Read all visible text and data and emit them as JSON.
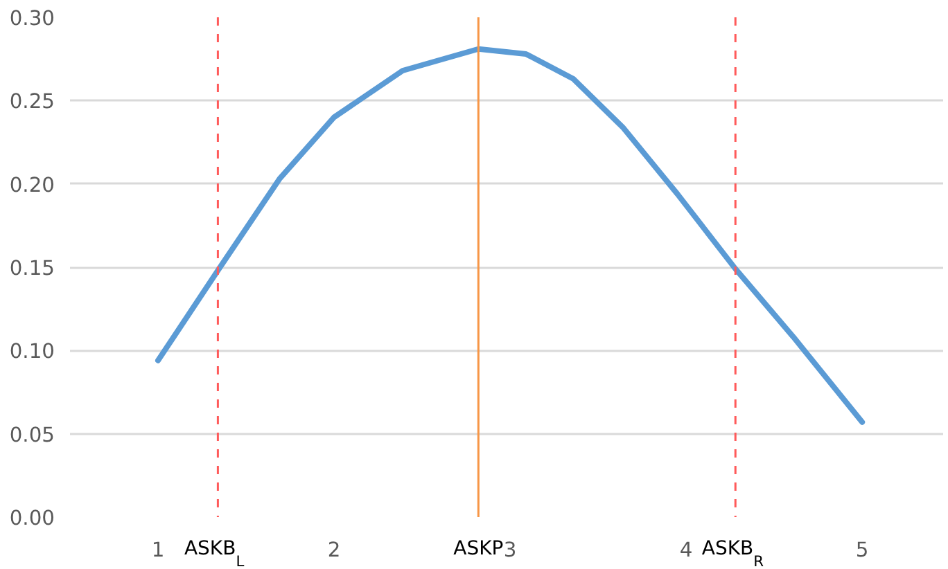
{
  "chart_data": {
    "type": "line",
    "x": [
      1,
      1.34,
      1.69,
      2.0,
      2.39,
      2.82,
      3.09,
      3.36,
      3.64,
      3.95,
      4.28,
      4.61,
      5.0
    ],
    "series": [
      {
        "color": "#5b9bd5",
        "values": [
          0.094,
          0.148,
          0.203,
          0.24,
          0.268,
          0.281,
          0.278,
          0.263,
          0.234,
          0.194,
          0.149,
          0.108,
          0.057
        ]
      }
    ],
    "xlim": [
      0.5,
      5.46
    ],
    "xticks": [
      1,
      2,
      3,
      4,
      5
    ],
    "ylim": [
      0,
      0.3
    ],
    "yticks": [
      {
        "value": 0,
        "label": "0.00"
      },
      {
        "value": 0.05,
        "label": "0.05"
      },
      {
        "value": 0.1,
        "label": "0.10"
      },
      {
        "value": 0.15,
        "label": "0.15"
      },
      {
        "value": 0.2,
        "label": "0.20"
      },
      {
        "value": 0.25,
        "label": "0.25"
      },
      {
        "value": 0.3,
        "label": "0.30"
      }
    ],
    "grid": "y",
    "line_style": "solid",
    "marker": "none",
    "ref_lines": [
      {
        "axis": "x",
        "value": 1.34,
        "label": "ASKB$_{L}$",
        "color": "#ff5a5a",
        "line_style": "dashed"
      },
      {
        "axis": "x",
        "value": 2.82,
        "label": "ASKP",
        "color": "#f79646",
        "line_style": "solid"
      },
      {
        "axis": "x",
        "value": 4.28,
        "label": "ASKB$_{R}$",
        "color": "#ff5a5a",
        "line_style": "dashed"
      }
    ]
  }
}
